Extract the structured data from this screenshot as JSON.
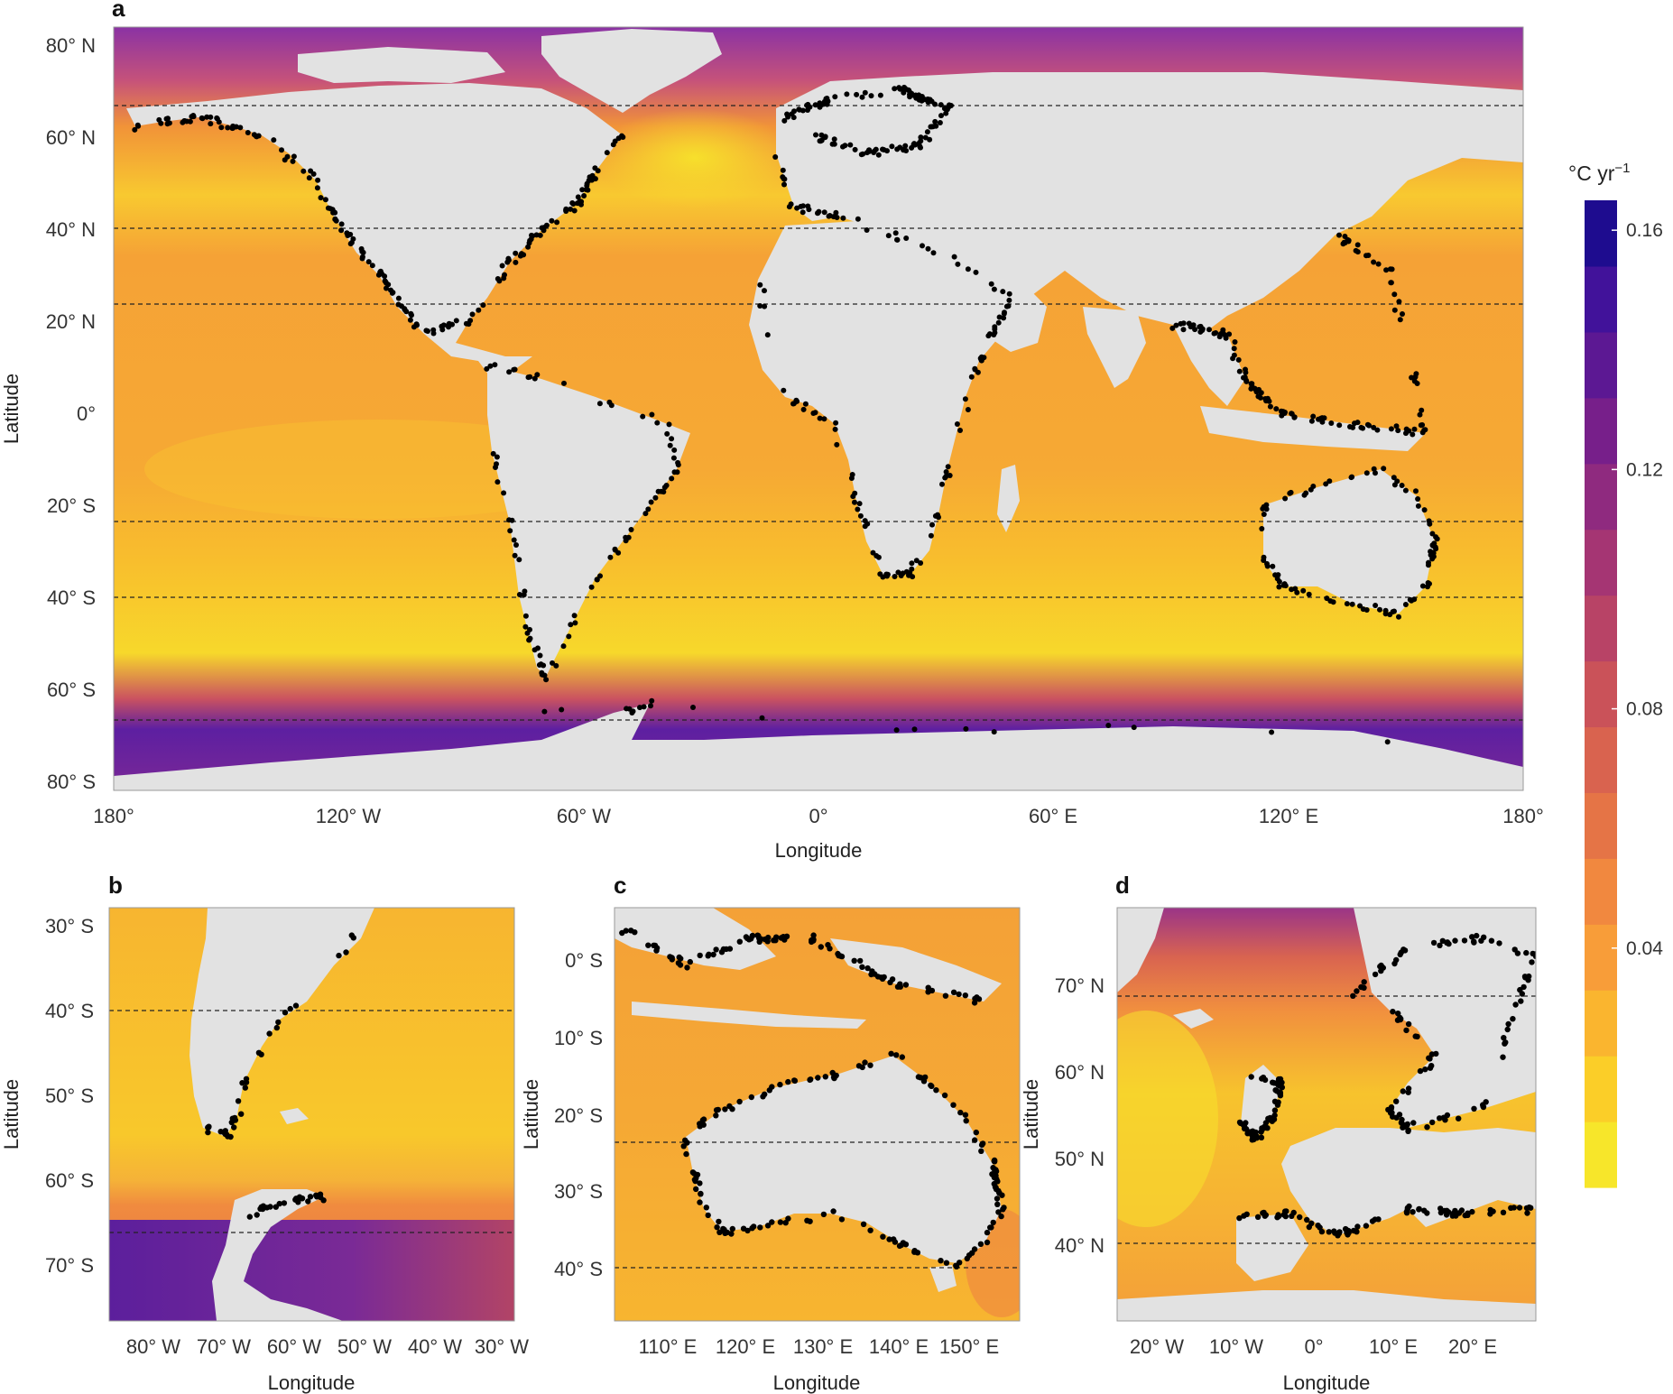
{
  "panels": {
    "a": {
      "letter": "a",
      "xlabel": "Longitude",
      "ylabel": "Latitude",
      "x_ticks": [
        "180°",
        "120° W",
        "60° W",
        "0°",
        "60° E",
        "120° E",
        "180°"
      ],
      "y_ticks": [
        "80° N",
        "60° N",
        "40° N",
        "20° N",
        "0°",
        "20° S",
        "40° S",
        "60° S",
        "80° S"
      ]
    },
    "b": {
      "letter": "b",
      "xlabel": "Longitude",
      "ylabel": "Latitude",
      "x_ticks": [
        "80° W",
        "70° W",
        "60° W",
        "50° W",
        "40° W",
        "30° W"
      ],
      "y_ticks": [
        "30° S",
        "40° S",
        "50° S",
        "60° S",
        "70° S"
      ]
    },
    "c": {
      "letter": "c",
      "xlabel": "Longitude",
      "ylabel": "Latitude",
      "x_ticks": [
        "110° E",
        "120° E",
        "130° E",
        "140° E",
        "150° E"
      ],
      "y_ticks": [
        "0° S",
        "10° S",
        "20° S",
        "30° S",
        "40° S"
      ]
    },
    "d": {
      "letter": "d",
      "xlabel": "Longitude",
      "ylabel": "Latitude",
      "x_ticks": [
        "20° W",
        "10° W",
        "0°",
        "10° E",
        "20° E"
      ],
      "y_ticks": [
        "70° N",
        "60° N",
        "50° N",
        "40° N"
      ]
    }
  },
  "colorbar": {
    "unit": "°C yr",
    "unit_sup": "−1",
    "ticks": [
      "0.16",
      "0.12",
      "0.08",
      "0.04"
    ],
    "range": [
      0.0,
      0.165
    ],
    "tick_values": [
      0.16,
      0.12,
      0.08,
      0.04
    ],
    "palette": [
      "#f7e62a",
      "#fbce28",
      "#fab52f",
      "#f89d39",
      "#f1883f",
      "#e57446",
      "#d9634f",
      "#ca5259",
      "#b84366",
      "#a53573",
      "#8f2a7f",
      "#771f8a",
      "#5c1893",
      "#41129a",
      "#1e0c8f"
    ]
  },
  "colors": {
    "land": "#e2e2e2",
    "ocean_base": "#f5a537",
    "warm_band": "#f8c630",
    "polar": "#5a1fa3",
    "coast_points": "#000000"
  }
}
